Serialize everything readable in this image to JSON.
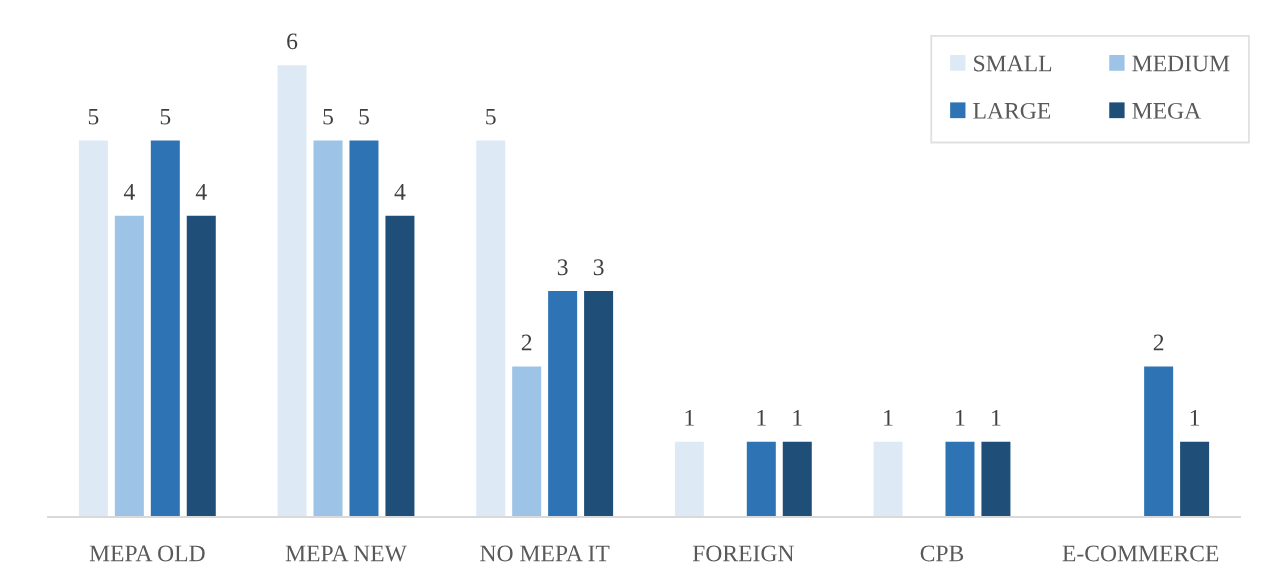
{
  "chart_data": {
    "type": "bar",
    "categories": [
      "MEPA OLD",
      "MEPA NEW",
      "NO MEPA IT",
      "FOREIGN",
      "CPB",
      "E-COMMERCE"
    ],
    "series": [
      {
        "name": "SMALL",
        "color": "#ddeaf6",
        "values": [
          5,
          6,
          5,
          1,
          1,
          null
        ]
      },
      {
        "name": "MEDIUM",
        "color": "#9dc3e6",
        "values": [
          4,
          5,
          2,
          null,
          null,
          null
        ]
      },
      {
        "name": "LARGE",
        "color": "#2e74b5",
        "values": [
          5,
          5,
          3,
          1,
          1,
          2
        ]
      },
      {
        "name": "MEGA",
        "color": "#1f4e79",
        "values": [
          4,
          4,
          3,
          1,
          1,
          1
        ]
      }
    ],
    "data_labels": true,
    "legend": "top right",
    "grid": false
  }
}
